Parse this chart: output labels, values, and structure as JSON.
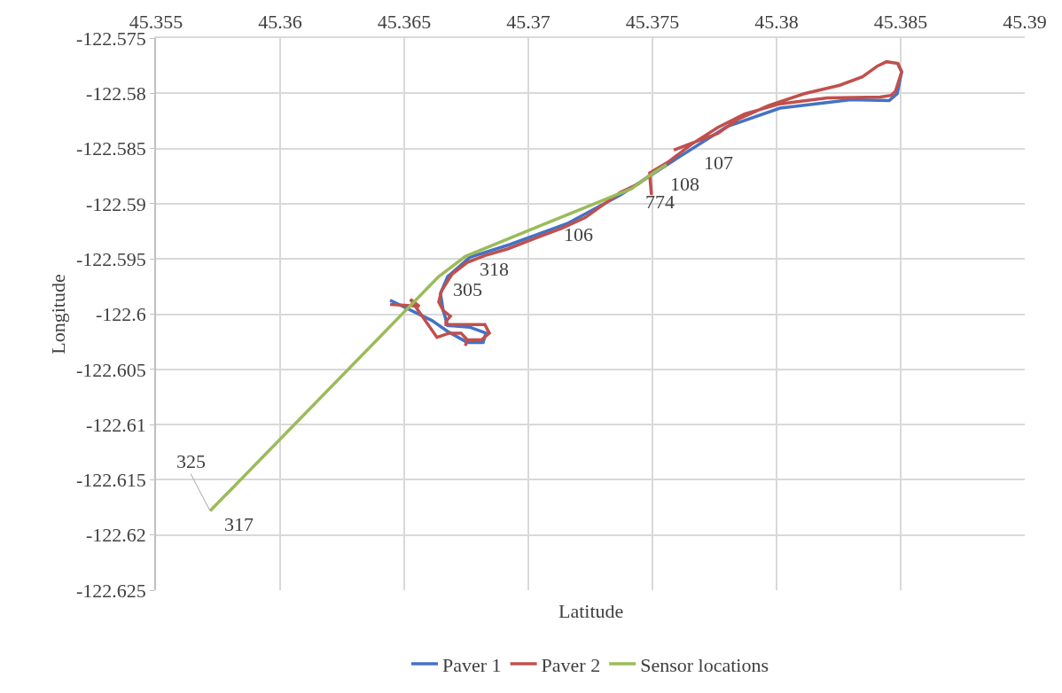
{
  "chart_data": {
    "type": "line",
    "xlabel": "Latitude",
    "ylabel": "Longitude",
    "xlim": [
      45.355,
      45.39
    ],
    "xticks": [
      45.355,
      45.36,
      45.365,
      45.37,
      45.375,
      45.38,
      45.385,
      45.39
    ],
    "ylim": [
      -122.625,
      -122.575
    ],
    "yticks": [
      -122.625,
      -122.62,
      -122.615,
      -122.61,
      -122.605,
      -122.6,
      -122.595,
      -122.59,
      -122.585,
      -122.58,
      -122.575
    ],
    "grid": true,
    "legend": "bottom",
    "marker": "none",
    "line_style": "solid",
    "series": [
      {
        "name": "Paver 1",
        "color": "#4472c4",
        "x": [
          45.36443,
          45.36611,
          45.36675,
          45.36754,
          45.36818,
          45.36829,
          45.36764,
          45.36675,
          45.36657,
          45.36646,
          45.36675,
          45.36764,
          45.36925,
          45.37157,
          45.37371,
          45.37586,
          45.378,
          45.38014,
          45.383,
          45.38454,
          45.38486,
          45.38504,
          45.38489
        ],
        "values": [
          -122.59874,
          -122.60057,
          -122.60157,
          -122.60256,
          -122.60256,
          -122.60172,
          -122.60118,
          -122.60103,
          -122.59966,
          -122.59813,
          -122.5966,
          -122.59485,
          -122.5937,
          -122.59179,
          -122.5892,
          -122.58607,
          -122.58302,
          -122.58134,
          -122.58057,
          -122.58065,
          -122.58004,
          -122.57805,
          -122.57737
        ]
      },
      {
        "name": "Paver 2",
        "color": "#c0504d",
        "x": [
          45.36443,
          45.36561,
          45.36525,
          45.36632,
          45.36682,
          45.36729,
          45.36754,
          45.36746,
          45.36754,
          45.36811,
          45.36843,
          45.36825,
          45.36668,
          45.36668,
          45.36686,
          45.36657,
          45.36639,
          45.3665,
          45.36693,
          45.36754,
          45.36825,
          45.36918,
          45.37039,
          45.37132,
          45.37229,
          45.37371,
          45.37443,
          45.37489,
          45.37496,
          45.37489,
          45.37568,
          45.37657,
          45.37764,
          45.37871,
          45.38014,
          45.38204,
          45.38418,
          45.38461,
          45.38479,
          45.38504,
          45.38489,
          45.38443,
          45.38407,
          45.38346,
          45.38254,
          45.38111,
          45.37968,
          45.37846,
          45.37764,
          45.37646,
          45.37586
        ],
        "values": [
          -122.59912,
          -122.59928,
          -122.59866,
          -122.6021,
          -122.60172,
          -122.60172,
          -122.60233,
          -122.60286,
          -122.60233,
          -122.60233,
          -122.60172,
          -122.60095,
          -122.60095,
          -122.60065,
          -122.60019,
          -122.59966,
          -122.59889,
          -122.5979,
          -122.59637,
          -122.59531,
          -122.59469,
          -122.59408,
          -122.59302,
          -122.59225,
          -122.59126,
          -122.58897,
          -122.58821,
          -122.58744,
          -122.5892,
          -122.58721,
          -122.58615,
          -122.58462,
          -122.58309,
          -122.58187,
          -122.58095,
          -122.58042,
          -122.58034,
          -122.58019,
          -122.57981,
          -122.57805,
          -122.57729,
          -122.57714,
          -122.57752,
          -122.57851,
          -122.57927,
          -122.58004,
          -122.58111,
          -122.58233,
          -122.58363,
          -122.58462,
          -122.58515
        ]
      },
      {
        "name": "Sensor locations",
        "color": "#9bbb59",
        "x": [
          45.35718,
          45.35718,
          45.36639,
          45.36746,
          45.37086,
          45.37414,
          45.37514,
          45.37557
        ],
        "values": [
          -122.61782,
          -122.61782,
          -122.5966,
          -122.59477,
          -122.59164,
          -122.58866,
          -122.58706,
          -122.58645
        ]
      }
    ],
    "annotations": [
      {
        "text": "317",
        "x": 45.35718,
        "y": -122.61782
      },
      {
        "text": "325",
        "x": 45.35718,
        "y": -122.61782
      },
      {
        "text": "305",
        "x": 45.36639,
        "y": -122.5966
      },
      {
        "text": "318",
        "x": 45.36746,
        "y": -122.59477
      },
      {
        "text": "106",
        "x": 45.37086,
        "y": -122.59164
      },
      {
        "text": "774",
        "x": 45.37414,
        "y": -122.58866
      },
      {
        "text": "108",
        "x": 45.37514,
        "y": -122.58706
      },
      {
        "text": "107",
        "x": 45.37557,
        "y": -122.58645
      }
    ]
  }
}
